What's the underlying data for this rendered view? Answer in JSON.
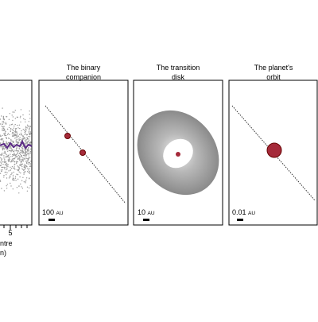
{
  "panels": [
    {
      "tick_label": "5",
      "axis_label": [
        "ntre",
        "n)"
      ]
    },
    {
      "title": [
        "The binary",
        "companion"
      ],
      "scale": {
        "value": "100",
        "unit": "AU"
      }
    },
    {
      "title": [
        "The transition",
        "disk"
      ],
      "scale": {
        "value": "10",
        "unit": "AU"
      }
    },
    {
      "title": [
        "The planet's",
        "orbit"
      ],
      "scale": {
        "value": "0.01",
        "unit": "AU"
      }
    }
  ]
}
